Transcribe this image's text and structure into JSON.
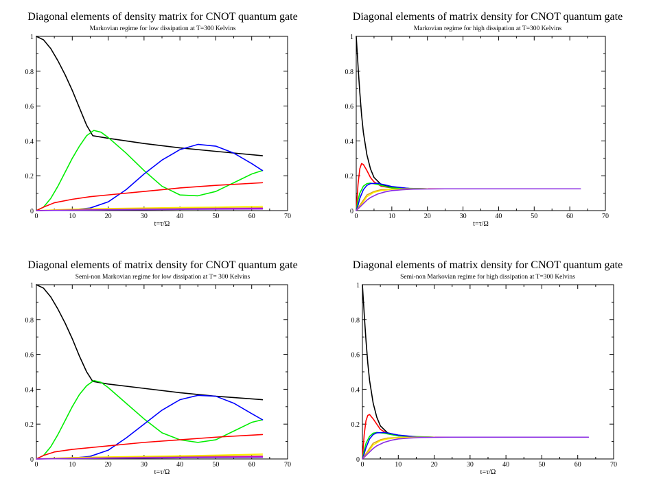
{
  "chart_data": [
    {
      "type": "line",
      "title": "Diagonal elements of density matrix for CNOT quantum gate",
      "subtitle": "Markovian regime for low dissipation at T=300 Kelvins",
      "xlabel": "t=τ/Ω",
      "ylabel": "",
      "xlim": [
        0,
        70
      ],
      "ylim": [
        0,
        1
      ],
      "xticks": [
        "0",
        "10",
        "20",
        "30",
        "40",
        "50",
        "60",
        "70"
      ],
      "yticks": [
        "0",
        "0.2",
        "0.4",
        "0.6",
        "0.8",
        "1"
      ],
      "series": [
        {
          "name": "black",
          "color": "#000000",
          "x": [
            0,
            2,
            4,
            6,
            8,
            10,
            12,
            14,
            15.7,
            20,
            30,
            40,
            50,
            63
          ],
          "y": [
            1,
            0.98,
            0.93,
            0.86,
            0.78,
            0.69,
            0.59,
            0.49,
            0.43,
            0.415,
            0.385,
            0.36,
            0.34,
            0.315
          ]
        },
        {
          "name": "green",
          "color": "#00ee00",
          "x": [
            0,
            2,
            4,
            6,
            8,
            10,
            12,
            14,
            16,
            18,
            20,
            25,
            30,
            35,
            40,
            45,
            50,
            55,
            60,
            63
          ],
          "y": [
            0,
            0.02,
            0.07,
            0.14,
            0.22,
            0.3,
            0.37,
            0.43,
            0.46,
            0.45,
            0.42,
            0.33,
            0.23,
            0.14,
            0.09,
            0.085,
            0.11,
            0.16,
            0.21,
            0.23
          ]
        },
        {
          "name": "blue",
          "color": "#0000ff",
          "x": [
            0,
            10,
            15,
            20,
            25,
            30,
            35,
            40,
            45,
            50,
            55,
            60,
            63
          ],
          "y": [
            0,
            0.005,
            0.015,
            0.05,
            0.12,
            0.21,
            0.29,
            0.35,
            0.38,
            0.37,
            0.33,
            0.27,
            0.23
          ]
        },
        {
          "name": "red",
          "color": "#ff0000",
          "x": [
            0,
            2,
            5,
            10,
            15,
            20,
            30,
            40,
            50,
            63
          ],
          "y": [
            0,
            0.02,
            0.045,
            0.065,
            0.08,
            0.09,
            0.11,
            0.13,
            0.145,
            0.16
          ]
        },
        {
          "name": "yellow",
          "color": "#ffee00",
          "x": [
            0,
            5,
            10,
            20,
            30,
            40,
            50,
            63
          ],
          "y": [
            0,
            0.004,
            0.008,
            0.012,
            0.015,
            0.018,
            0.02,
            0.025
          ]
        },
        {
          "name": "orange",
          "color": "#d8a020",
          "x": [
            0,
            10,
            20,
            30,
            40,
            50,
            63
          ],
          "y": [
            0,
            0.004,
            0.007,
            0.01,
            0.012,
            0.014,
            0.016
          ]
        },
        {
          "name": "magenta",
          "color": "#cc00cc",
          "x": [
            0,
            10,
            20,
            30,
            40,
            50,
            63
          ],
          "y": [
            0,
            0.003,
            0.005,
            0.007,
            0.009,
            0.011,
            0.013
          ]
        },
        {
          "name": "purple",
          "color": "#8a2be2",
          "x": [
            0,
            10,
            20,
            30,
            40,
            50,
            63
          ],
          "y": [
            0,
            0.002,
            0.004,
            0.005,
            0.007,
            0.008,
            0.009
          ]
        }
      ]
    },
    {
      "type": "line",
      "title": "Diagonal elements of matrix density for CNOT quantum gate",
      "subtitle": "Markovian regime for high dissipation at T=300 Kelvins",
      "xlabel": "t=τ/Ω",
      "ylabel": "",
      "xlim": [
        0,
        70
      ],
      "ylim": [
        0,
        1
      ],
      "xticks": [
        "0",
        "10",
        "20",
        "30",
        "40",
        "50",
        "60",
        "70"
      ],
      "yticks": [
        "0",
        "0.2",
        "0.4",
        "0.6",
        "0.8",
        "1"
      ],
      "series": [
        {
          "name": "black",
          "color": "#000000",
          "x": [
            0,
            0.3,
            0.6,
            1,
            1.5,
            2,
            3,
            4,
            5,
            7,
            10,
            15,
            20,
            30
          ],
          "y": [
            1,
            0.9,
            0.8,
            0.68,
            0.55,
            0.45,
            0.32,
            0.24,
            0.19,
            0.15,
            0.135,
            0.127,
            0.125,
            0.125
          ]
        },
        {
          "name": "red",
          "color": "#ff0000",
          "x": [
            0,
            0.5,
            1,
            1.5,
            2,
            3,
            4,
            5,
            7,
            10,
            15,
            20,
            30
          ],
          "y": [
            0,
            0.15,
            0.24,
            0.27,
            0.265,
            0.23,
            0.19,
            0.165,
            0.14,
            0.13,
            0.126,
            0.125,
            0.125
          ]
        },
        {
          "name": "green",
          "color": "#00ee00",
          "x": [
            0,
            0.5,
            1,
            2,
            3,
            4,
            6,
            10,
            20
          ],
          "y": [
            0,
            0.06,
            0.1,
            0.14,
            0.155,
            0.158,
            0.15,
            0.13,
            0.125
          ]
        },
        {
          "name": "blue",
          "color": "#0000ff",
          "x": [
            0,
            0.5,
            1,
            2,
            3,
            4,
            6,
            8,
            10,
            15,
            20
          ],
          "y": [
            0,
            0.03,
            0.07,
            0.12,
            0.145,
            0.155,
            0.157,
            0.148,
            0.138,
            0.127,
            0.125
          ]
        },
        {
          "name": "orange",
          "color": "#d8a020",
          "x": [
            0,
            1,
            2,
            3,
            5,
            7,
            10,
            15,
            20
          ],
          "y": [
            0,
            0.03,
            0.06,
            0.09,
            0.11,
            0.12,
            0.123,
            0.125,
            0.125
          ]
        },
        {
          "name": "yellow",
          "color": "#ffee00",
          "x": [
            0,
            1,
            2,
            3,
            5,
            7,
            10,
            15,
            20
          ],
          "y": [
            0,
            0.02,
            0.05,
            0.08,
            0.105,
            0.115,
            0.122,
            0.125,
            0.125
          ]
        },
        {
          "name": "purple",
          "color": "#8a2be2",
          "x": [
            0,
            1,
            2,
            3,
            4,
            6,
            8,
            10,
            13,
            16,
            20,
            25,
            30,
            40,
            50,
            63
          ],
          "y": [
            0,
            0.02,
            0.04,
            0.06,
            0.075,
            0.095,
            0.107,
            0.115,
            0.12,
            0.123,
            0.124,
            0.125,
            0.125,
            0.125,
            0.125,
            0.125
          ]
        }
      ]
    },
    {
      "type": "line",
      "title": "Diagonal elements of matrix density for CNOT quantum gate",
      "subtitle": "Semi-non Markovian regime for low dissipation at T= 300 Kelvins",
      "xlabel": "t=τ/Ω",
      "ylabel": "",
      "xlim": [
        0,
        70
      ],
      "ylim": [
        0,
        1
      ],
      "xticks": [
        "0",
        "10",
        "20",
        "30",
        "40",
        "50",
        "60",
        "70"
      ],
      "yticks": [
        "0",
        "0.2",
        "0.4",
        "0.6",
        "0.8",
        "1"
      ],
      "series": [
        {
          "name": "black",
          "color": "#000000",
          "x": [
            0,
            2,
            4,
            6,
            8,
            10,
            12,
            14,
            15.7,
            20,
            30,
            40,
            50,
            63
          ],
          "y": [
            1,
            0.98,
            0.93,
            0.86,
            0.78,
            0.69,
            0.59,
            0.5,
            0.445,
            0.43,
            0.405,
            0.38,
            0.36,
            0.34
          ]
        },
        {
          "name": "green",
          "color": "#00ee00",
          "x": [
            0,
            2,
            4,
            6,
            8,
            10,
            12,
            14,
            16,
            18,
            20,
            25,
            30,
            35,
            40,
            45,
            50,
            55,
            60,
            63
          ],
          "y": [
            0,
            0.02,
            0.07,
            0.14,
            0.22,
            0.3,
            0.37,
            0.42,
            0.45,
            0.44,
            0.41,
            0.32,
            0.23,
            0.15,
            0.11,
            0.095,
            0.11,
            0.16,
            0.21,
            0.225
          ]
        },
        {
          "name": "blue",
          "color": "#0000ff",
          "x": [
            0,
            10,
            15,
            20,
            25,
            30,
            35,
            40,
            45,
            50,
            55,
            60,
            63
          ],
          "y": [
            0,
            0.005,
            0.015,
            0.05,
            0.12,
            0.2,
            0.28,
            0.34,
            0.365,
            0.36,
            0.32,
            0.26,
            0.225
          ]
        },
        {
          "name": "red",
          "color": "#ff0000",
          "x": [
            0,
            2,
            5,
            10,
            15,
            20,
            30,
            40,
            50,
            63
          ],
          "y": [
            0,
            0.02,
            0.04,
            0.055,
            0.065,
            0.075,
            0.095,
            0.11,
            0.125,
            0.14
          ]
        },
        {
          "name": "yellow",
          "color": "#ffee00",
          "x": [
            0,
            5,
            10,
            20,
            30,
            40,
            50,
            63
          ],
          "y": [
            0,
            0.004,
            0.008,
            0.012,
            0.015,
            0.018,
            0.022,
            0.028
          ]
        },
        {
          "name": "orange",
          "color": "#d8a020",
          "x": [
            0,
            10,
            20,
            30,
            40,
            50,
            63
          ],
          "y": [
            0,
            0.004,
            0.007,
            0.01,
            0.013,
            0.016,
            0.018
          ]
        },
        {
          "name": "magenta",
          "color": "#cc00cc",
          "x": [
            0,
            10,
            20,
            30,
            40,
            50,
            63
          ],
          "y": [
            0,
            0.003,
            0.005,
            0.007,
            0.009,
            0.011,
            0.013
          ]
        },
        {
          "name": "purple",
          "color": "#8a2be2",
          "x": [
            0,
            10,
            20,
            30,
            40,
            50,
            63
          ],
          "y": [
            0,
            0.002,
            0.004,
            0.005,
            0.007,
            0.008,
            0.009
          ]
        }
      ]
    },
    {
      "type": "line",
      "title": "Diagonal elements of matrix density for CNOT quantum gate",
      "subtitle": "Semi-non Markovian regime for high dissipation at T=300 Kelvins",
      "xlabel": "t=τ/Ω",
      "ylabel": "",
      "xlim": [
        0,
        70
      ],
      "ylim": [
        0,
        1
      ],
      "xticks": [
        "0",
        "10",
        "20",
        "30",
        "40",
        "50",
        "60",
        "70"
      ],
      "yticks": [
        "0",
        "0.2",
        "0.4",
        "0.6",
        "0.8",
        "1"
      ],
      "series": [
        {
          "name": "black",
          "color": "#000000",
          "x": [
            0,
            0.3,
            0.6,
            1,
            1.5,
            2,
            3,
            4,
            5,
            7,
            10,
            15,
            20,
            30
          ],
          "y": [
            1,
            0.9,
            0.8,
            0.68,
            0.55,
            0.45,
            0.32,
            0.24,
            0.19,
            0.15,
            0.135,
            0.127,
            0.125,
            0.125
          ]
        },
        {
          "name": "red",
          "color": "#ff0000",
          "x": [
            0,
            0.5,
            1,
            1.5,
            2,
            3,
            4,
            5,
            7,
            10,
            15,
            20,
            30
          ],
          "y": [
            0,
            0.14,
            0.22,
            0.25,
            0.255,
            0.23,
            0.2,
            0.17,
            0.145,
            0.132,
            0.126,
            0.125,
            0.125
          ]
        },
        {
          "name": "green",
          "color": "#00ee00",
          "x": [
            0,
            0.5,
            1,
            2,
            3,
            4,
            6,
            10,
            20
          ],
          "y": [
            0,
            0.05,
            0.09,
            0.13,
            0.148,
            0.152,
            0.148,
            0.132,
            0.125
          ]
        },
        {
          "name": "blue",
          "color": "#0000ff",
          "x": [
            0,
            0.5,
            1,
            2,
            3,
            4,
            6,
            8,
            10,
            15,
            20
          ],
          "y": [
            0,
            0.03,
            0.065,
            0.115,
            0.14,
            0.15,
            0.152,
            0.145,
            0.137,
            0.127,
            0.125
          ]
        },
        {
          "name": "orange",
          "color": "#d8a020",
          "x": [
            0,
            1,
            2,
            3,
            5,
            7,
            10,
            15,
            20
          ],
          "y": [
            0,
            0.03,
            0.06,
            0.09,
            0.11,
            0.12,
            0.123,
            0.125,
            0.125
          ]
        },
        {
          "name": "yellow",
          "color": "#ffee00",
          "x": [
            0,
            1,
            2,
            3,
            5,
            7,
            10,
            15,
            20
          ],
          "y": [
            0,
            0.02,
            0.05,
            0.08,
            0.105,
            0.115,
            0.122,
            0.125,
            0.125
          ]
        },
        {
          "name": "purple",
          "color": "#8a2be2",
          "x": [
            0,
            1,
            2,
            3,
            4,
            6,
            8,
            10,
            13,
            16,
            20,
            25,
            30,
            40,
            50,
            63
          ],
          "y": [
            0,
            0.02,
            0.04,
            0.06,
            0.075,
            0.095,
            0.107,
            0.115,
            0.12,
            0.123,
            0.124,
            0.125,
            0.125,
            0.125,
            0.125,
            0.125
          ]
        }
      ]
    }
  ]
}
